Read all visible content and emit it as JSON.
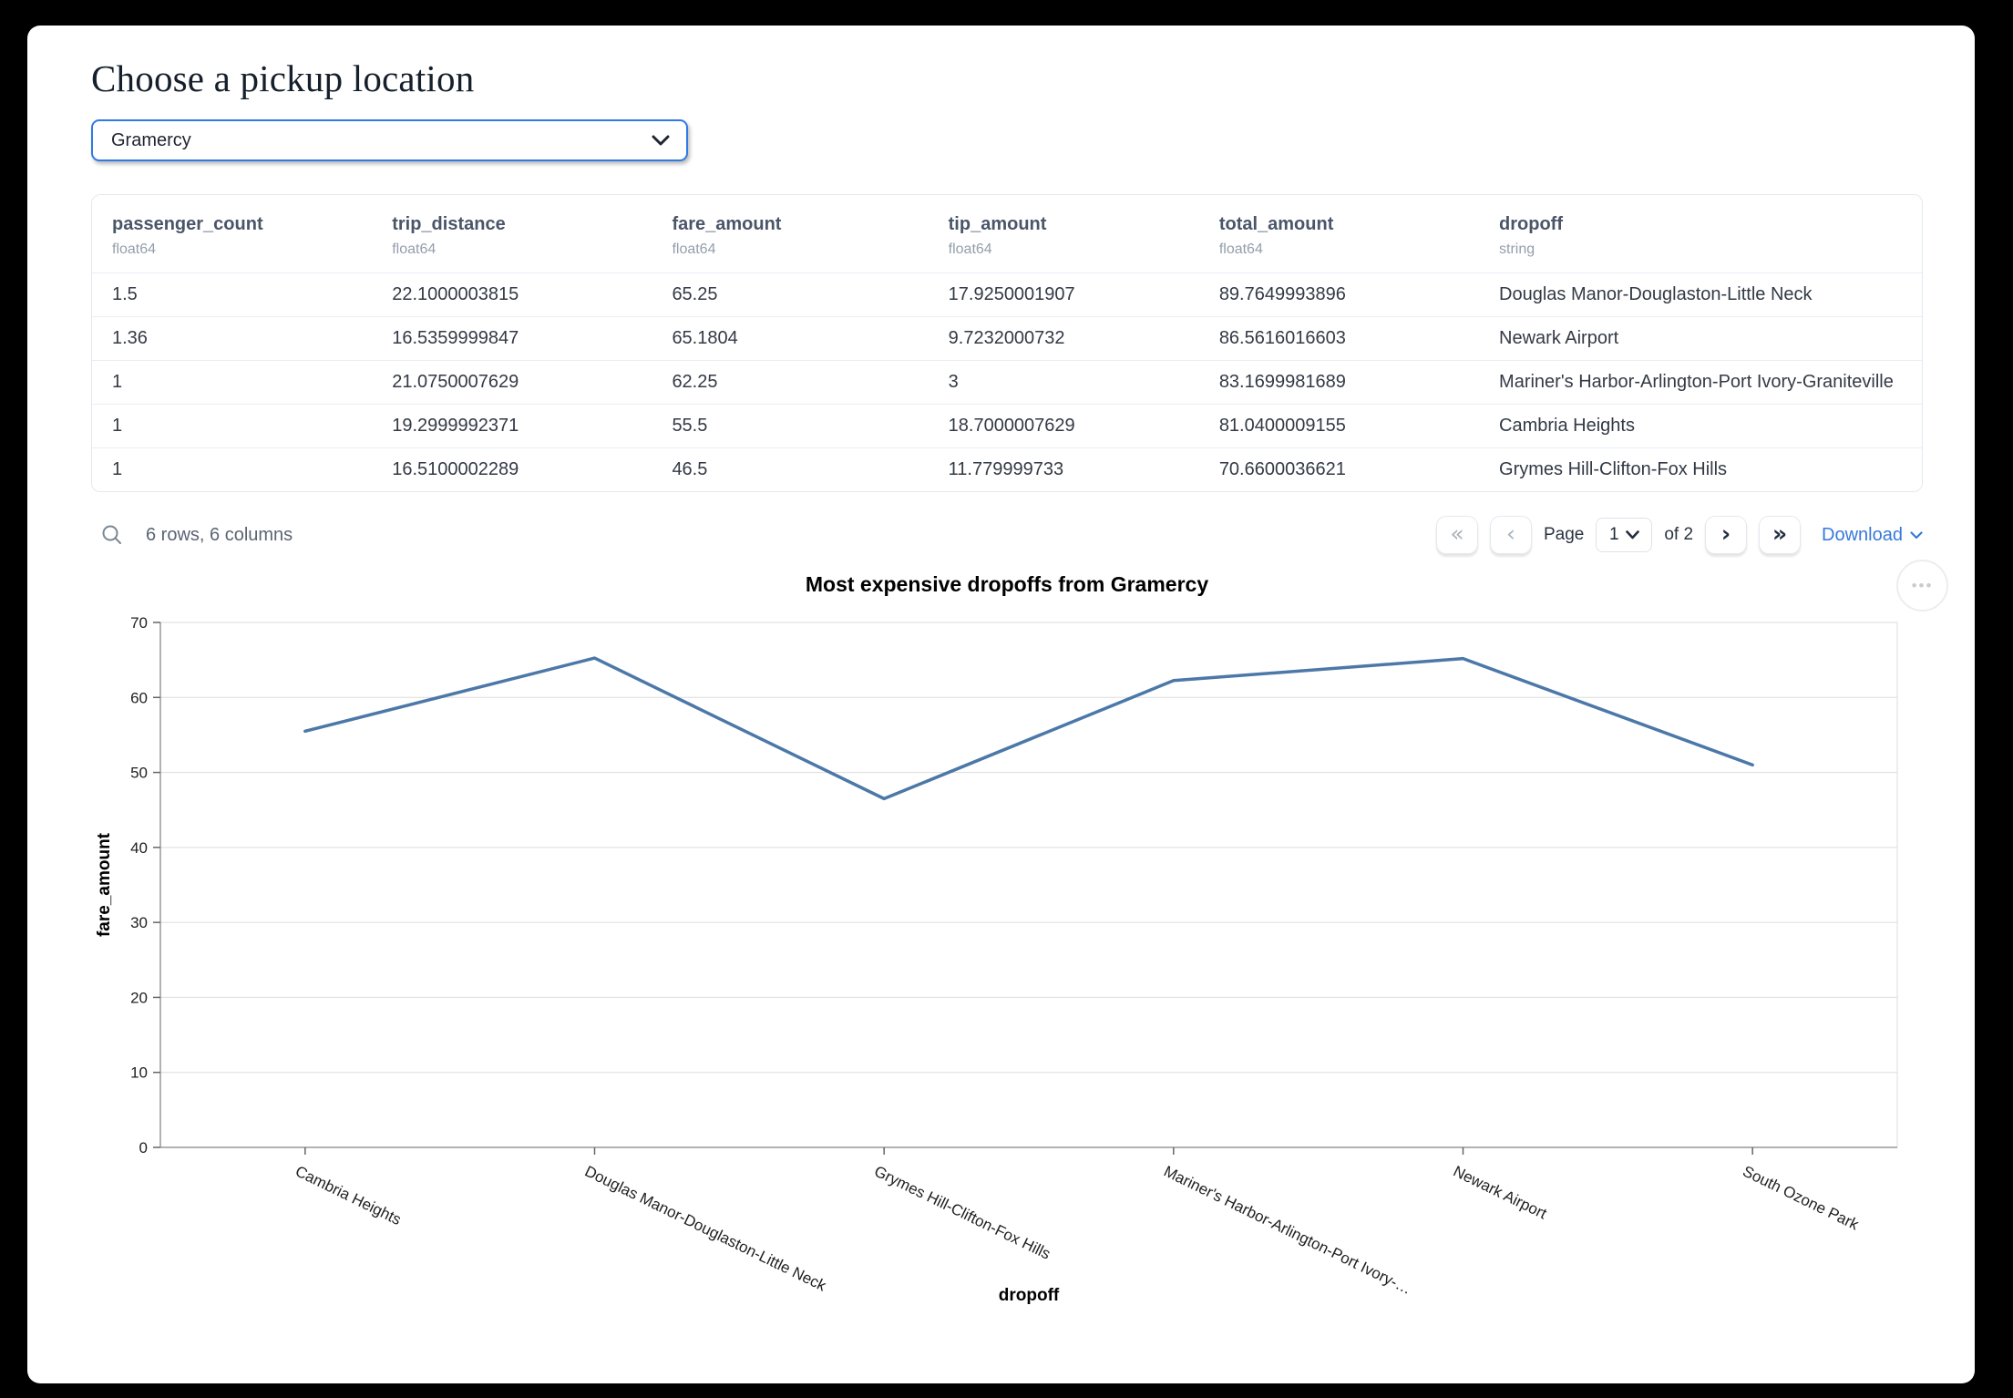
{
  "page": {
    "title": "Choose a pickup location",
    "pickup_select": {
      "value": "Gramercy"
    }
  },
  "icons": {
    "select_chevron": "chevron-down",
    "search": "magnifier",
    "first": "«",
    "prev": "‹",
    "next": "›",
    "last": "»",
    "more_options": "•••",
    "download_chevron": "chevron-down"
  },
  "table": {
    "columns": [
      {
        "name": "passenger_count",
        "dtype": "float64"
      },
      {
        "name": "trip_distance",
        "dtype": "float64"
      },
      {
        "name": "fare_amount",
        "dtype": "float64"
      },
      {
        "name": "tip_amount",
        "dtype": "float64"
      },
      {
        "name": "total_amount",
        "dtype": "float64"
      },
      {
        "name": "dropoff",
        "dtype": "string"
      }
    ],
    "rows": [
      [
        "1.5",
        "22.1000003815",
        "65.25",
        "17.9250001907",
        "89.7649993896",
        "Douglas Manor-Douglaston-Little Neck"
      ],
      [
        "1.36",
        "16.5359999847",
        "65.1804",
        "9.7232000732",
        "86.5616016603",
        "Newark Airport"
      ],
      [
        "1",
        "21.0750007629",
        "62.25",
        "3",
        "83.1699981689",
        "Mariner's Harbor-Arlington-Port Ivory-Graniteville"
      ],
      [
        "1",
        "19.2999992371",
        "55.5",
        "18.7000007629",
        "81.0400009155",
        "Cambria Heights"
      ],
      [
        "1",
        "16.5100002289",
        "46.5",
        "11.779999733",
        "70.6600036621",
        "Grymes Hill-Clifton-Fox Hills"
      ]
    ],
    "summary": "6 rows, 6 columns",
    "pagination": {
      "page_label": "Page",
      "page_value": "1",
      "of_label": "of 2"
    },
    "download_label": "Download"
  },
  "chart_data": {
    "type": "line",
    "title": "Most expensive dropoffs from Gramercy",
    "xlabel": "dropoff",
    "ylabel": "fare_amount",
    "categories": [
      "Cambria Heights",
      "Douglas Manor-Douglaston-Little Neck",
      "Grymes Hill-Clifton-Fox Hills",
      "Mariner's Harbor-Arlington-Port Ivory-Graniteville",
      "Newark Airport",
      "South Ozone Park"
    ],
    "categories_display": [
      "Cambria Heights",
      "Douglas Manor-Douglaston-Little Neck",
      "Grymes Hill-Clifton-Fox Hills",
      "Mariner's Harbor-Arlington-Port Ivory-…",
      "Newark Airport",
      "South Ozone Park"
    ],
    "values": [
      55.5,
      65.25,
      46.5,
      62.25,
      65.1804,
      51.0
    ],
    "ylim": [
      0,
      70
    ],
    "yticks": [
      0,
      10,
      20,
      30,
      40,
      50,
      60,
      70
    ],
    "grid": true,
    "legend_position": "none",
    "line_color": "#4c78a8",
    "grid_color": "#dddddd",
    "axis_color": "#999999",
    "tick_color": "#666666",
    "label_color": "#1f1f1f"
  },
  "colors": {
    "accent_blue": "#2f7ae5",
    "link_blue": "#3779d9",
    "header_text": "#4a5568",
    "cell_text": "#333a45"
  }
}
